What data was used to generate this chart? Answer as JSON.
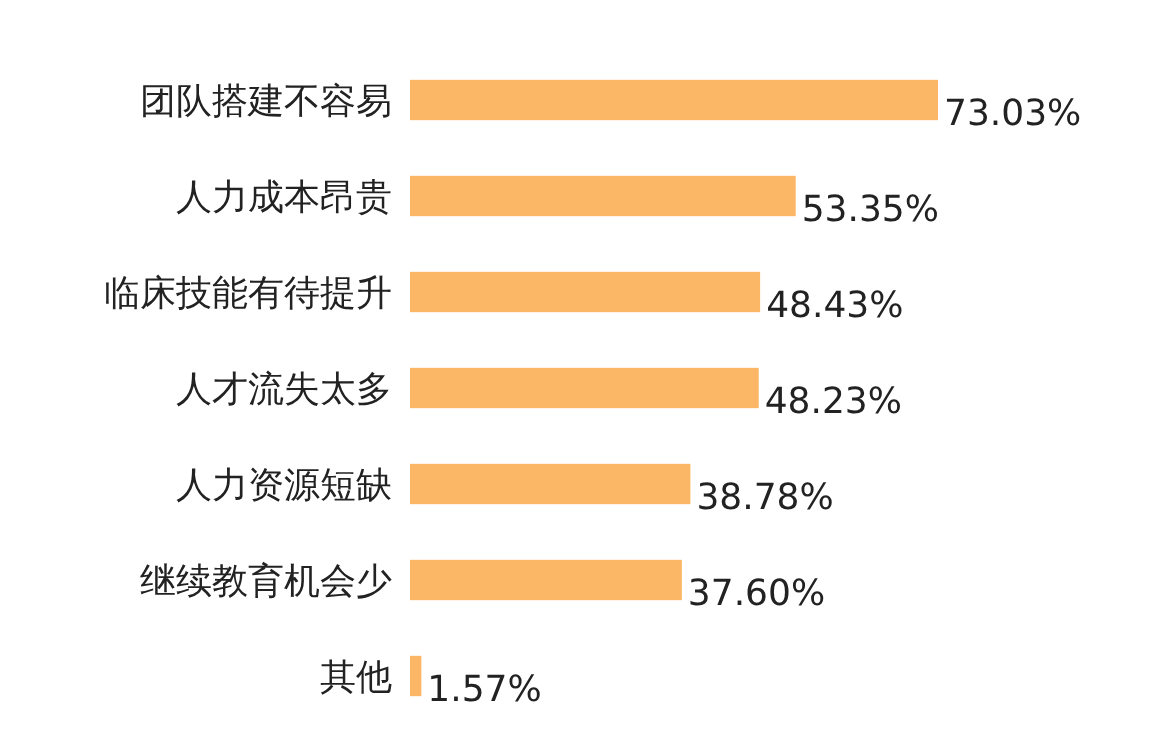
{
  "chart_data": {
    "type": "bar",
    "orientation": "horizontal",
    "categories": [
      "团队搭建不容易",
      "人力成本昂贵",
      "临床技能有待提升",
      "人才流失太多",
      "人力资源短缺",
      "继续教育机会少",
      "其他"
    ],
    "values": [
      73.03,
      53.35,
      48.43,
      48.23,
      38.78,
      37.6,
      1.57
    ],
    "value_labels": [
      "73.03%",
      "53.35%",
      "48.43%",
      "48.23%",
      "38.78%",
      "37.60%",
      "1.57%"
    ],
    "color": "#fbb666"
  }
}
